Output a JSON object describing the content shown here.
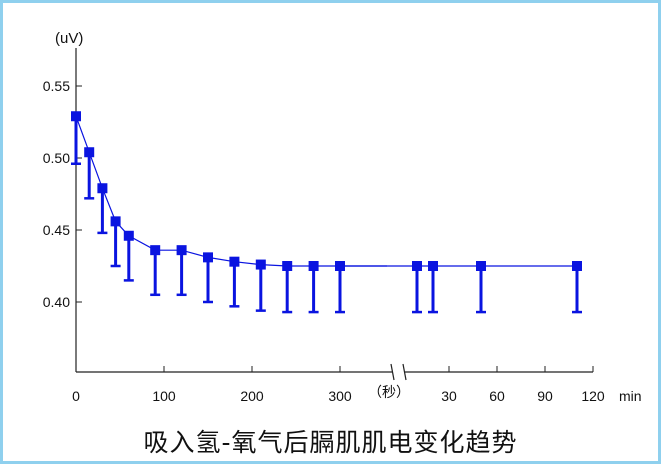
{
  "chart_data": {
    "type": "line",
    "title": "",
    "caption": "吸入氢-氧气后膈肌肌电变化趋势",
    "ylabel": "(uV)",
    "ylim": [
      0.36,
      0.575
    ],
    "yticks": [
      "0.40",
      "0.45",
      "0.50",
      "0.55"
    ],
    "color": "#0a14e0",
    "error_bars": "one-sided (downward)",
    "grid": false,
    "segments": [
      {
        "unit": "秒",
        "unit_label": "（秒）",
        "xlim": [
          0,
          300
        ],
        "xticks": [
          "0",
          "100",
          "200",
          "300"
        ],
        "points": [
          {
            "x": 0,
            "y": 0.529,
            "lower": 0.496
          },
          {
            "x": 15,
            "y": 0.504,
            "lower": 0.472
          },
          {
            "x": 30,
            "y": 0.479,
            "lower": 0.448
          },
          {
            "x": 45,
            "y": 0.456,
            "lower": 0.425
          },
          {
            "x": 60,
            "y": 0.446,
            "lower": 0.415
          },
          {
            "x": 90,
            "y": 0.436,
            "lower": 0.405
          },
          {
            "x": 120,
            "y": 0.436,
            "lower": 0.405
          },
          {
            "x": 150,
            "y": 0.431,
            "lower": 0.4
          },
          {
            "x": 180,
            "y": 0.428,
            "lower": 0.397
          },
          {
            "x": 210,
            "y": 0.426,
            "lower": 0.394
          },
          {
            "x": 240,
            "y": 0.425,
            "lower": 0.393
          },
          {
            "x": 270,
            "y": 0.425,
            "lower": 0.393
          },
          {
            "x": 300,
            "y": 0.425,
            "lower": 0.393
          }
        ]
      },
      {
        "unit": "min",
        "unit_label": "min",
        "xlim": [
          0,
          120
        ],
        "xticks": [
          "30",
          "60",
          "90",
          "120"
        ],
        "points": [
          {
            "x": 10,
            "y": 0.425,
            "lower": 0.393
          },
          {
            "x": 20,
            "y": 0.425,
            "lower": 0.393
          },
          {
            "x": 50,
            "y": 0.425,
            "lower": 0.393
          },
          {
            "x": 110,
            "y": 0.425,
            "lower": 0.393
          }
        ]
      }
    ]
  }
}
